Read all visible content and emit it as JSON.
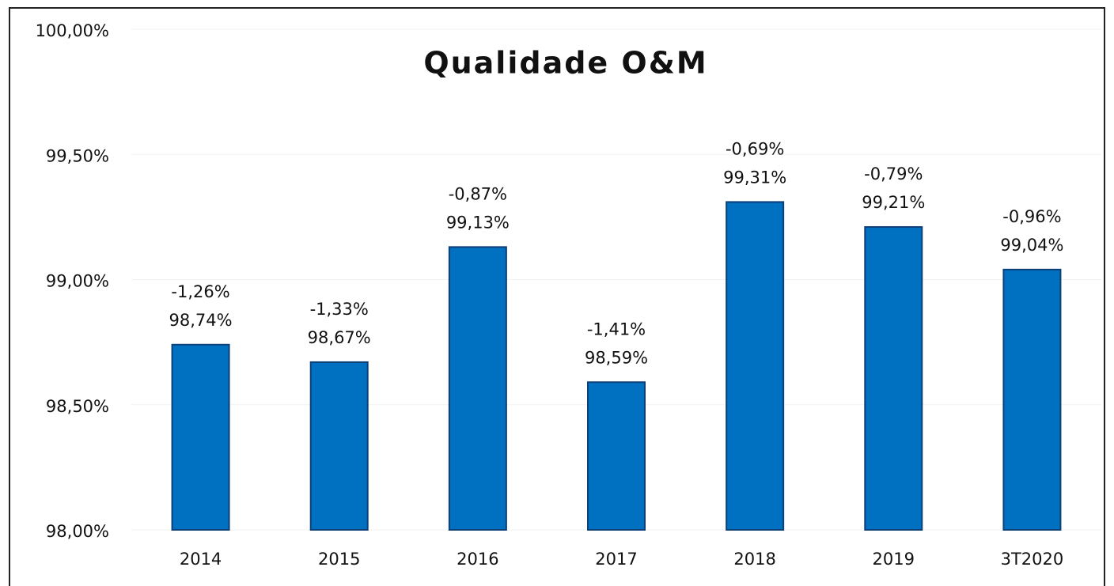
{
  "chart_data": {
    "type": "bar",
    "title": "Qualidade O&M",
    "categories": [
      "2014",
      "2015",
      "2016",
      "2017",
      "2018",
      "2019",
      "3T2020"
    ],
    "values": [
      98.74,
      98.67,
      99.13,
      98.59,
      99.31,
      99.21,
      99.04
    ],
    "value_labels": [
      "98,74%",
      "98,67%",
      "99,13%",
      "98,59%",
      "99,31%",
      "99,21%",
      "99,04%"
    ],
    "annotations": [
      "-1,26%",
      "-1,33%",
      "-0,87%",
      "-1,41%",
      "-0,69%",
      "-0,79%",
      "-0,96%"
    ],
    "color": "#0070c0",
    "ylim": [
      98,
      100
    ],
    "yticks": [
      {
        "value": 98,
        "label": "98,00%"
      },
      {
        "value": 98.5,
        "label": "98,50%"
      },
      {
        "value": 99,
        "label": "99,00%"
      },
      {
        "value": 99.5,
        "label": "99,50%"
      },
      {
        "value": 100,
        "label": "100,00%"
      }
    ],
    "grid": true
  }
}
